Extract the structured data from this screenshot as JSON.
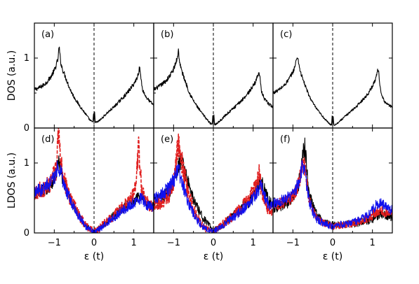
{
  "chart_data": [
    {
      "panel": "a",
      "label": "(a)",
      "type": "line",
      "xlabel": "",
      "ylabel": "DOS (a.u.)",
      "xlim": [
        -1.5,
        1.5
      ],
      "ylim": [
        0,
        1.5
      ],
      "xticks": [
        -1,
        0,
        1
      ],
      "yticks": [
        0,
        1
      ],
      "ytick_labels": [
        "0",
        "1"
      ],
      "xtick_labels": [],
      "vline": 0,
      "series": [
        {
          "color": "#000000",
          "dashed": false,
          "noise": 0.03,
          "x": [
            -1.5,
            -1.4,
            -1.3,
            -1.2,
            -1.1,
            -1.0,
            -0.95,
            -0.9,
            -0.88,
            -0.86,
            -0.84,
            -0.8,
            -0.7,
            -0.6,
            -0.5,
            -0.4,
            -0.3,
            -0.2,
            -0.1,
            -0.03,
            -0.01,
            0.0,
            0.01,
            0.03,
            0.1,
            0.2,
            0.3,
            0.4,
            0.5,
            0.6,
            0.7,
            0.8,
            0.9,
            1.0,
            1.05,
            1.1,
            1.14,
            1.16,
            1.18,
            1.22,
            1.3,
            1.4,
            1.5
          ],
          "y": [
            0.55,
            0.57,
            0.6,
            0.65,
            0.72,
            0.82,
            0.9,
            1.0,
            1.18,
            1.05,
            0.95,
            0.85,
            0.7,
            0.55,
            0.44,
            0.35,
            0.27,
            0.19,
            0.11,
            0.08,
            0.25,
            0.06,
            0.25,
            0.08,
            0.09,
            0.14,
            0.2,
            0.25,
            0.3,
            0.36,
            0.42,
            0.48,
            0.55,
            0.63,
            0.68,
            0.75,
            0.85,
            0.82,
            0.7,
            0.55,
            0.45,
            0.38,
            0.33
          ]
        }
      ]
    },
    {
      "panel": "b",
      "label": "(b)",
      "type": "line",
      "xlabel": "",
      "ylabel": "",
      "xlim": [
        -1.5,
        1.5
      ],
      "ylim": [
        0,
        1.5
      ],
      "xticks": [
        -1,
        0,
        1
      ],
      "yticks": [
        0,
        1
      ],
      "ytick_labels": [],
      "xtick_labels": [],
      "vline": 0,
      "series": [
        {
          "color": "#000000",
          "dashed": false,
          "noise": 0.03,
          "x": [
            -1.5,
            -1.4,
            -1.3,
            -1.2,
            -1.1,
            -1.0,
            -0.95,
            -0.9,
            -0.88,
            -0.86,
            -0.84,
            -0.8,
            -0.7,
            -0.6,
            -0.5,
            -0.4,
            -0.3,
            -0.2,
            -0.1,
            -0.03,
            -0.01,
            0.0,
            0.01,
            0.03,
            0.1,
            0.2,
            0.3,
            0.4,
            0.5,
            0.6,
            0.7,
            0.8,
            0.9,
            1.0,
            1.05,
            1.1,
            1.14,
            1.16,
            1.18,
            1.22,
            1.3,
            1.4,
            1.5
          ],
          "y": [
            0.55,
            0.58,
            0.62,
            0.67,
            0.74,
            0.84,
            0.92,
            1.02,
            1.12,
            1.0,
            0.92,
            0.82,
            0.66,
            0.5,
            0.39,
            0.3,
            0.22,
            0.15,
            0.08,
            0.05,
            0.22,
            0.04,
            0.22,
            0.05,
            0.07,
            0.12,
            0.18,
            0.23,
            0.28,
            0.33,
            0.39,
            0.45,
            0.52,
            0.6,
            0.65,
            0.72,
            0.8,
            0.78,
            0.66,
            0.5,
            0.4,
            0.34,
            0.3
          ]
        }
      ]
    },
    {
      "panel": "c",
      "label": "(c)",
      "type": "line",
      "xlabel": "",
      "ylabel": "",
      "xlim": [
        -1.5,
        1.5
      ],
      "ylim": [
        0,
        1.5
      ],
      "xticks": [
        -1,
        0,
        1
      ],
      "yticks": [
        0,
        1
      ],
      "ytick_labels": [],
      "xtick_labels": [],
      "vline": 0,
      "series": [
        {
          "color": "#000000",
          "dashed": false,
          "noise": 0.025,
          "x": [
            -1.5,
            -1.4,
            -1.3,
            -1.2,
            -1.1,
            -1.0,
            -0.95,
            -0.9,
            -0.88,
            -0.86,
            -0.84,
            -0.8,
            -0.7,
            -0.6,
            -0.5,
            -0.4,
            -0.3,
            -0.2,
            -0.1,
            -0.03,
            -0.01,
            0.0,
            0.01,
            0.03,
            0.1,
            0.2,
            0.3,
            0.4,
            0.5,
            0.6,
            0.7,
            0.8,
            0.9,
            1.0,
            1.05,
            1.1,
            1.14,
            1.16,
            1.18,
            1.22,
            1.3,
            1.4,
            1.5
          ],
          "y": [
            0.5,
            0.53,
            0.57,
            0.62,
            0.7,
            0.8,
            0.88,
            1.0,
            1.02,
            0.95,
            0.88,
            0.78,
            0.62,
            0.47,
            0.36,
            0.27,
            0.2,
            0.13,
            0.07,
            0.04,
            0.2,
            0.03,
            0.2,
            0.04,
            0.06,
            0.11,
            0.16,
            0.21,
            0.26,
            0.31,
            0.37,
            0.43,
            0.5,
            0.6,
            0.66,
            0.74,
            0.86,
            0.8,
            0.64,
            0.48,
            0.38,
            0.33,
            0.3
          ]
        }
      ]
    },
    {
      "panel": "d",
      "label": "(d)",
      "type": "line",
      "xlabel": "ε (t)",
      "ylabel": "LDOS (a.u.)",
      "xlim": [
        -1.5,
        1.5
      ],
      "ylim": [
        0,
        1.5
      ],
      "xticks": [
        -1,
        0,
        1
      ],
      "yticks": [
        0,
        1
      ],
      "ytick_labels": [
        "0",
        "1"
      ],
      "xtick_labels": [
        "−1",
        "0",
        "1"
      ],
      "vline": 0,
      "series": [
        {
          "color": "#000000",
          "dashed": false,
          "noise": 0.09,
          "x": [
            -1.5,
            -1.3,
            -1.1,
            -0.95,
            -0.9,
            -0.85,
            -0.8,
            -0.7,
            -0.6,
            -0.5,
            -0.4,
            -0.3,
            -0.2,
            -0.1,
            0.0,
            0.1,
            0.2,
            0.3,
            0.4,
            0.5,
            0.6,
            0.7,
            0.8,
            0.9,
            1.0,
            1.1,
            1.2,
            1.3,
            1.4,
            1.5
          ],
          "y": [
            0.55,
            0.6,
            0.68,
            0.85,
            1.0,
            0.95,
            0.8,
            0.62,
            0.48,
            0.38,
            0.27,
            0.17,
            0.1,
            0.05,
            0.01,
            0.05,
            0.1,
            0.15,
            0.2,
            0.25,
            0.3,
            0.33,
            0.38,
            0.42,
            0.45,
            0.5,
            0.55,
            0.45,
            0.4,
            0.38
          ]
        },
        {
          "color": "#e02020",
          "dashed": true,
          "noise": 0.12,
          "x": [
            -1.5,
            -1.3,
            -1.1,
            -0.95,
            -0.92,
            -0.88,
            -0.84,
            -0.8,
            -0.7,
            -0.6,
            -0.5,
            -0.4,
            -0.3,
            -0.2,
            -0.1,
            0.0,
            0.1,
            0.2,
            0.3,
            0.4,
            0.5,
            0.6,
            0.7,
            0.8,
            0.9,
            1.0,
            1.05,
            1.1,
            1.12,
            1.15,
            1.2,
            1.3,
            1.4,
            1.5
          ],
          "y": [
            0.6,
            0.62,
            0.7,
            0.9,
            1.2,
            1.5,
            1.1,
            0.85,
            0.65,
            0.5,
            0.38,
            0.28,
            0.18,
            0.1,
            0.05,
            0.02,
            0.05,
            0.1,
            0.15,
            0.2,
            0.25,
            0.3,
            0.35,
            0.4,
            0.45,
            0.55,
            0.7,
            1.1,
            1.4,
            1.0,
            0.6,
            0.45,
            0.4,
            0.38
          ]
        },
        {
          "color": "#1010ee",
          "dashed": false,
          "noise": 0.1,
          "x": [
            -1.5,
            -1.3,
            -1.1,
            -0.95,
            -0.9,
            -0.85,
            -0.8,
            -0.7,
            -0.6,
            -0.5,
            -0.4,
            -0.3,
            -0.2,
            -0.1,
            0.0,
            0.1,
            0.2,
            0.3,
            0.4,
            0.5,
            0.6,
            0.7,
            0.8,
            0.9,
            1.0,
            1.1,
            1.2,
            1.3,
            1.4,
            1.5
          ],
          "y": [
            0.6,
            0.62,
            0.72,
            0.85,
            0.98,
            0.9,
            0.78,
            0.6,
            0.48,
            0.36,
            0.26,
            0.17,
            0.09,
            0.04,
            0.01,
            0.04,
            0.08,
            0.13,
            0.18,
            0.22,
            0.27,
            0.31,
            0.35,
            0.4,
            0.44,
            0.47,
            0.5,
            0.42,
            0.38,
            0.36
          ]
        }
      ]
    },
    {
      "panel": "e",
      "label": "(e)",
      "type": "line",
      "xlabel": "ε (t)",
      "ylabel": "",
      "xlim": [
        -1.5,
        1.5
      ],
      "ylim": [
        0,
        1.5
      ],
      "xticks": [
        -1,
        0,
        1
      ],
      "yticks": [
        0,
        1
      ],
      "ytick_labels": [],
      "xtick_labels": [
        "−1",
        "0",
        "1"
      ],
      "vline": 0,
      "series": [
        {
          "color": "#000000",
          "dashed": false,
          "noise": 0.1,
          "x": [
            -1.5,
            -1.3,
            -1.1,
            -1.0,
            -0.9,
            -0.8,
            -0.7,
            -0.6,
            -0.5,
            -0.4,
            -0.3,
            -0.2,
            -0.1,
            0.0,
            0.1,
            0.2,
            0.3,
            0.4,
            0.5,
            0.6,
            0.7,
            0.8,
            0.9,
            1.0,
            1.1,
            1.2,
            1.3,
            1.4,
            1.5
          ],
          "y": [
            0.45,
            0.5,
            0.6,
            0.72,
            0.95,
            1.05,
            0.85,
            0.65,
            0.48,
            0.35,
            0.25,
            0.17,
            0.1,
            0.04,
            0.06,
            0.1,
            0.15,
            0.2,
            0.25,
            0.3,
            0.35,
            0.4,
            0.45,
            0.55,
            0.65,
            0.75,
            0.6,
            0.45,
            0.4
          ]
        },
        {
          "color": "#e02020",
          "dashed": true,
          "noise": 0.12,
          "x": [
            -1.5,
            -1.3,
            -1.1,
            -1.0,
            -0.95,
            -0.9,
            -0.85,
            -0.8,
            -0.7,
            -0.6,
            -0.5,
            -0.4,
            -0.3,
            -0.2,
            -0.1,
            0.0,
            0.1,
            0.2,
            0.3,
            0.4,
            0.5,
            0.6,
            0.7,
            0.8,
            0.9,
            1.0,
            1.1,
            1.15,
            1.2,
            1.3,
            1.4,
            1.5
          ],
          "y": [
            0.4,
            0.45,
            0.55,
            0.75,
            0.95,
            1.2,
            1.3,
            1.05,
            0.75,
            0.5,
            0.35,
            0.22,
            0.12,
            0.06,
            0.03,
            0.02,
            0.05,
            0.1,
            0.15,
            0.2,
            0.25,
            0.3,
            0.35,
            0.42,
            0.5,
            0.6,
            0.75,
            0.85,
            0.65,
            0.4,
            0.35,
            0.32
          ]
        },
        {
          "color": "#1010ee",
          "dashed": false,
          "noise": 0.1,
          "x": [
            -1.5,
            -1.3,
            -1.1,
            -1.0,
            -0.9,
            -0.85,
            -0.8,
            -0.7,
            -0.6,
            -0.5,
            -0.4,
            -0.3,
            -0.2,
            -0.1,
            0.0,
            0.1,
            0.2,
            0.3,
            0.4,
            0.5,
            0.6,
            0.7,
            0.8,
            0.9,
            1.0,
            1.1,
            1.2,
            1.3,
            1.4,
            1.5
          ],
          "y": [
            0.5,
            0.55,
            0.65,
            0.75,
            0.9,
            0.85,
            0.75,
            0.55,
            0.4,
            0.28,
            0.18,
            0.11,
            0.06,
            0.03,
            0.02,
            0.05,
            0.09,
            0.14,
            0.18,
            0.22,
            0.27,
            0.32,
            0.37,
            0.43,
            0.5,
            0.6,
            0.68,
            0.5,
            0.4,
            0.38
          ]
        }
      ]
    },
    {
      "panel": "f",
      "label": "(f)",
      "type": "line",
      "xlabel": "ε (t)",
      "ylabel": "",
      "xlim": [
        -1.5,
        1.5
      ],
      "ylim": [
        0,
        1.5
      ],
      "xticks": [
        -1,
        0,
        1
      ],
      "yticks": [
        0,
        1
      ],
      "ytick_labels": [],
      "xtick_labels": [
        "−1",
        "0",
        "1"
      ],
      "vline": 0,
      "series": [
        {
          "color": "#000000",
          "dashed": false,
          "noise": 0.1,
          "x": [
            -1.5,
            -1.3,
            -1.1,
            -1.0,
            -0.9,
            -0.8,
            -0.75,
            -0.7,
            -0.65,
            -0.6,
            -0.5,
            -0.4,
            -0.3,
            -0.2,
            -0.1,
            0.0,
            0.1,
            0.2,
            0.3,
            0.4,
            0.5,
            0.6,
            0.7,
            0.8,
            0.9,
            1.0,
            1.1,
            1.2,
            1.3,
            1.4,
            1.5
          ],
          "y": [
            0.35,
            0.38,
            0.45,
            0.5,
            0.6,
            0.85,
            1.1,
            1.25,
            0.9,
            0.6,
            0.38,
            0.26,
            0.19,
            0.15,
            0.13,
            0.12,
            0.12,
            0.12,
            0.12,
            0.13,
            0.13,
            0.14,
            0.15,
            0.16,
            0.18,
            0.2,
            0.24,
            0.28,
            0.25,
            0.24,
            0.23
          ]
        },
        {
          "color": "#e02020",
          "dashed": true,
          "noise": 0.1,
          "x": [
            -1.5,
            -1.3,
            -1.1,
            -1.0,
            -0.9,
            -0.8,
            -0.75,
            -0.7,
            -0.65,
            -0.6,
            -0.5,
            -0.4,
            -0.3,
            -0.2,
            -0.1,
            0.0,
            0.1,
            0.2,
            0.3,
            0.4,
            0.5,
            0.6,
            0.7,
            0.8,
            0.9,
            1.0,
            1.1,
            1.2,
            1.3,
            1.4,
            1.5
          ],
          "y": [
            0.4,
            0.42,
            0.48,
            0.52,
            0.62,
            0.85,
            1.0,
            0.95,
            0.7,
            0.5,
            0.32,
            0.22,
            0.17,
            0.13,
            0.11,
            0.1,
            0.1,
            0.11,
            0.12,
            0.13,
            0.14,
            0.15,
            0.17,
            0.19,
            0.21,
            0.25,
            0.3,
            0.34,
            0.3,
            0.28,
            0.28
          ]
        },
        {
          "color": "#1010ee",
          "dashed": false,
          "noise": 0.1,
          "x": [
            -1.5,
            -1.3,
            -1.1,
            -1.0,
            -0.9,
            -0.8,
            -0.75,
            -0.7,
            -0.65,
            -0.6,
            -0.5,
            -0.4,
            -0.3,
            -0.2,
            -0.1,
            0.0,
            0.1,
            0.2,
            0.3,
            0.4,
            0.5,
            0.6,
            0.7,
            0.8,
            0.9,
            1.0,
            1.1,
            1.2,
            1.3,
            1.4,
            1.5
          ],
          "y": [
            0.42,
            0.45,
            0.52,
            0.56,
            0.65,
            0.85,
            0.95,
            0.9,
            0.68,
            0.48,
            0.3,
            0.2,
            0.16,
            0.13,
            0.11,
            0.1,
            0.11,
            0.12,
            0.13,
            0.14,
            0.15,
            0.17,
            0.19,
            0.22,
            0.26,
            0.32,
            0.4,
            0.45,
            0.38,
            0.34,
            0.33
          ]
        }
      ]
    }
  ]
}
